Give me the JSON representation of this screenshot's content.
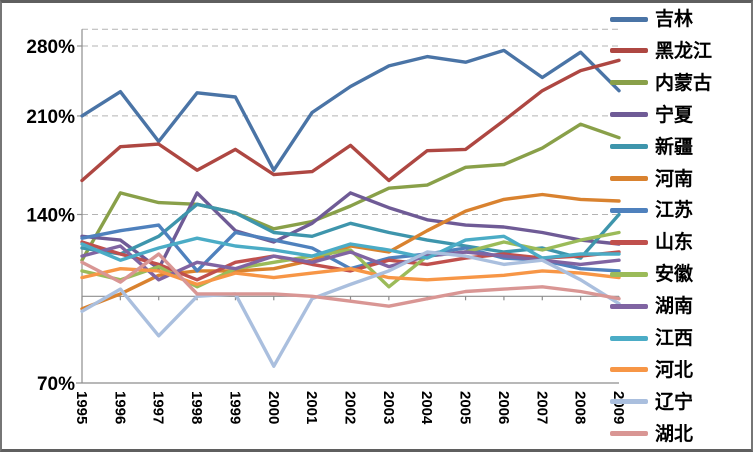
{
  "chart_data": {
    "type": "line",
    "title": "",
    "x": [
      "1995",
      "1996",
      "1997",
      "1998",
      "1999",
      "2000",
      "2001",
      "2002",
      "2003",
      "2004",
      "2005",
      "2006",
      "2007",
      "2008",
      "2009"
    ],
    "series": [
      {
        "name": "吉林",
        "color": "#4A74A6",
        "values": [
          210,
          232,
          189,
          231,
          227,
          168,
          213,
          237,
          258,
          268,
          262,
          275,
          246,
          273,
          233
        ]
      },
      {
        "name": "黑龙江",
        "color": "#AE4742",
        "values": [
          161,
          185,
          187,
          168,
          183,
          165,
          167,
          186,
          161,
          182,
          183,
          206,
          233,
          253,
          264
        ]
      },
      {
        "name": "内蒙古",
        "color": "#89A049",
        "values": [
          116,
          153,
          147,
          146,
          141,
          132,
          136,
          145,
          156,
          158,
          170,
          172,
          184,
          203,
          192
        ]
      },
      {
        "name": "宁夏",
        "color": "#6F5B96",
        "values": [
          128,
          126,
          112,
          153,
          131,
          125,
          135,
          153,
          144,
          137,
          134,
          133,
          130,
          126,
          124
        ]
      },
      {
        "name": "新疆",
        "color": "#3E95AC",
        "values": [
          122,
          119,
          128,
          146,
          141,
          130,
          128,
          135,
          130,
          126,
          123,
          120,
          122,
          117,
          140
        ]
      },
      {
        "name": "河南",
        "color": "#D9822F",
        "values": [
          95,
          101,
          109,
          111,
          111,
          112,
          116,
          123,
          120,
          131,
          142,
          149,
          152,
          149,
          148
        ]
      },
      {
        "name": "江苏",
        "color": "#4F81BD",
        "values": [
          127,
          131,
          134,
          111,
          130,
          126,
          122,
          112,
          117,
          119,
          122,
          117,
          116,
          112,
          111
        ]
      },
      {
        "name": "山东",
        "color": "#C0504D",
        "values": [
          125,
          119,
          114,
          107,
          115,
          118,
          114,
          111,
          116,
          114,
          117,
          119,
          117,
          118,
          120
        ]
      },
      {
        "name": "安徽",
        "color": "#9BBB59",
        "values": [
          111,
          107,
          113,
          104,
          112,
          115,
          118,
          121,
          104,
          118,
          120,
          125,
          121,
          126,
          130
        ]
      },
      {
        "name": "湖南",
        "color": "#8064A2",
        "values": [
          118,
          123,
          107,
          115,
          112,
          118,
          115,
          120,
          113,
          118,
          120,
          118,
          116,
          114,
          116
        ]
      },
      {
        "name": "江西",
        "color": "#4BACC6",
        "values": [
          124,
          116,
          122,
          127,
          123,
          121,
          118,
          124,
          121,
          117,
          126,
          128,
          117,
          119,
          119
        ]
      },
      {
        "name": "河北",
        "color": "#F79646",
        "values": [
          108,
          112,
          111,
          105,
          110,
          108,
          110,
          112,
          108,
          107,
          108,
          109,
          111,
          110,
          108
        ]
      },
      {
        "name": "辽宁",
        "color": "#AABFDE",
        "values": [
          94,
          103,
          85,
          100,
          101,
          75,
          99,
          105,
          111,
          120,
          118,
          114,
          116,
          107,
          97
        ]
      },
      {
        "name": "湖北",
        "color": "#D99694",
        "values": [
          115,
          106,
          119,
          101,
          101,
          101,
          100,
          98,
          96,
          99,
          102,
          103,
          104,
          102,
          99
        ]
      }
    ],
    "yaxis": {
      "scale": "log2",
      "min": 70,
      "max": 300,
      "ticks": [
        280,
        210,
        140,
        70
      ],
      "tick_labels": [
        "280%",
        "210%",
        "140%",
        "70%"
      ],
      "category_axis_crosses_at": 100
    },
    "grid": {
      "horizontal": "dashed",
      "color": "#b3b3b3"
    },
    "axis_color": "#8e8e8e",
    "legend_position": "right"
  },
  "frame": {
    "border_color": "#767676",
    "background": "#ffffff"
  }
}
